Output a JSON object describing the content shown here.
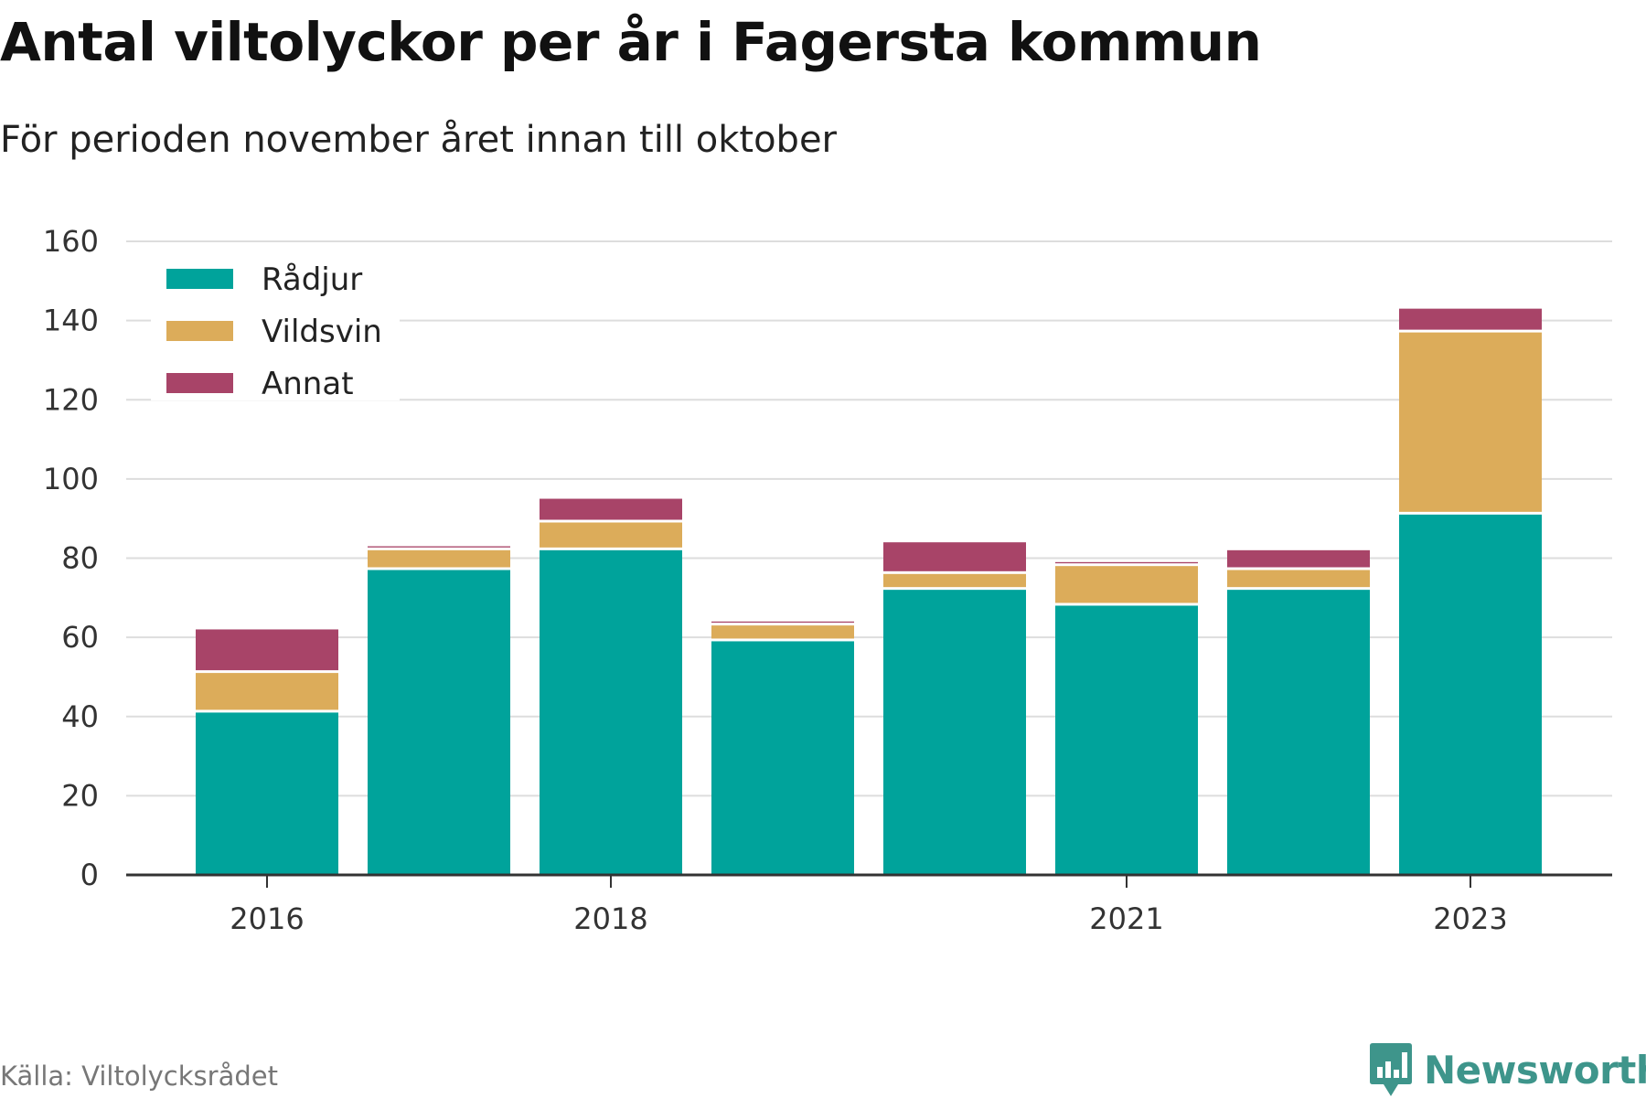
{
  "chart_data": {
    "type": "bar",
    "stacked": true,
    "title": "Antal viltolyckor per år i Fagersta kommun",
    "subtitle": "För perioden november året innan till oktober",
    "xlabel": "",
    "ylabel": "",
    "ylim": [
      0,
      160
    ],
    "yticks": [
      0,
      20,
      40,
      60,
      80,
      100,
      120,
      140,
      160
    ],
    "x": [
      2016,
      2017,
      2018,
      2019,
      2020,
      2021,
      2022,
      2023
    ],
    "xtick_labels": [
      "2016",
      "2018",
      "2021",
      "2023"
    ],
    "xtick_years": [
      2016,
      2018,
      2021,
      2023
    ],
    "grid": true,
    "legend": "top-left",
    "series": [
      {
        "name": "Rådjur",
        "color": "#00a39b",
        "values": [
          41,
          77,
          82,
          59,
          72,
          68,
          72,
          91
        ]
      },
      {
        "name": "Vildsvin",
        "color": "#dcac5a",
        "values": [
          10,
          5,
          7,
          4,
          4,
          10,
          5,
          46
        ]
      },
      {
        "name": "Annat",
        "color": "#a84468",
        "values": [
          11,
          1,
          6,
          1,
          8,
          1,
          5,
          6
        ]
      }
    ]
  },
  "footer": {
    "source": "Källa: Viltolycksrådet",
    "brand": "Newsworthy",
    "brand_icon": "newsworthy-logo-icon",
    "brand_color": "#3e958b"
  }
}
